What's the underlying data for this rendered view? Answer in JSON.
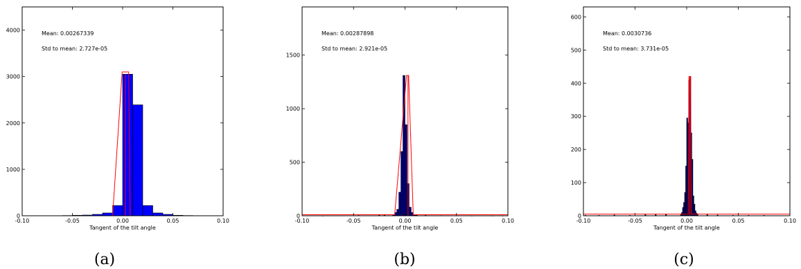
{
  "chart_data": [
    {
      "type": "bar",
      "subcaption": "(a)",
      "xlabel": "Tangent of the tilt angle",
      "ylabel": "",
      "xlim": [
        -0.1,
        0.1
      ],
      "ylim": [
        0,
        4500
      ],
      "xticks": [
        "-0.10",
        "-0.05",
        "0.00",
        "0.05",
        "0.10"
      ],
      "xtick_values": [
        -0.1,
        -0.05,
        0.0,
        0.05,
        0.1
      ],
      "yticks": [
        "0",
        "1000",
        "2000",
        "3000",
        "4000"
      ],
      "ytick_values": [
        0,
        1000,
        2000,
        3000,
        4000
      ],
      "annotations": [
        "Mean: 0.00267339",
        "Std to mean: 2.727e-05"
      ],
      "mean_line": 0.0027,
      "curve": [
        [
          -0.1,
          0
        ],
        [
          -0.01,
          0
        ],
        [
          -0.0005,
          3100
        ],
        [
          0.006,
          3100
        ],
        [
          0.0075,
          0
        ],
        [
          0.1,
          0
        ]
      ],
      "bin_edges": [
        -0.1,
        -0.09,
        -0.08,
        -0.07,
        -0.06,
        -0.05,
        -0.04,
        -0.03,
        -0.02,
        -0.01,
        0.0,
        0.01,
        0.02,
        0.03,
        0.04,
        0.05,
        0.06,
        0.07,
        0.08,
        0.09,
        0.1
      ],
      "values": [
        0,
        0,
        0,
        0,
        5,
        10,
        15,
        30,
        60,
        220,
        3050,
        2390,
        220,
        60,
        30,
        10,
        5,
        0,
        0,
        0
      ],
      "bar_color": "#0000ff"
    },
    {
      "type": "bar",
      "subcaption": "(b)",
      "xlabel": "Tangent of the tilt angle",
      "ylabel": "",
      "xlim": [
        -0.1,
        0.1
      ],
      "ylim": [
        0,
        1950
      ],
      "xticks": [
        "-0.10",
        "-0.05",
        "0.00",
        "0.05",
        "0.10"
      ],
      "xtick_values": [
        -0.1,
        -0.05,
        0.0,
        0.05,
        0.1
      ],
      "yticks": [
        "0",
        "500",
        "1000",
        "1500"
      ],
      "ytick_values": [
        0,
        500,
        1000,
        1500
      ],
      "annotations": [
        "Mean: 0.00287898",
        "Std to mean: 2.921e-05"
      ],
      "mean_line": 0.0029,
      "curve": [
        [
          -0.1,
          10
        ],
        [
          -0.01,
          10
        ],
        [
          0.0015,
          1310
        ],
        [
          0.0035,
          1310
        ],
        [
          0.008,
          10
        ],
        [
          0.1,
          10
        ]
      ],
      "bin_edges": [
        -0.012,
        -0.01,
        -0.008,
        -0.006,
        -0.004,
        -0.002,
        0.0,
        0.002,
        0.004,
        0.006,
        0.008,
        0.01,
        0.012
      ],
      "values": [
        10,
        30,
        60,
        220,
        600,
        1310,
        850,
        300,
        80,
        30,
        10,
        5
      ],
      "scatter_x": [
        -0.095,
        -0.08,
        -0.06,
        -0.045,
        -0.025,
        -0.02,
        0.02,
        0.035,
        0.05,
        0.065,
        0.085,
        0.095
      ],
      "scatter_y": [
        3,
        2,
        3,
        5,
        8,
        10,
        6,
        4,
        3,
        2,
        2,
        2
      ],
      "bar_color": "#00008b"
    },
    {
      "type": "bar",
      "subcaption": "(c)",
      "xlabel": "Tangent of the tilt angle",
      "ylabel": "",
      "xlim": [
        -0.1,
        0.1
      ],
      "ylim": [
        0,
        630
      ],
      "xticks": [
        "-0.10",
        "-0.05",
        "0.00",
        "0.05",
        "0.10"
      ],
      "xtick_values": [
        -0.1,
        -0.05,
        0.0,
        0.05,
        0.1
      ],
      "yticks": [
        "0",
        "100",
        "200",
        "300",
        "400",
        "500",
        "600"
      ],
      "ytick_values": [
        0,
        100,
        200,
        300,
        400,
        500,
        600
      ],
      "annotations": [
        "Mean: 0.0030736",
        "Std to mean: 3.731e-05"
      ],
      "mean_line": 0.003,
      "curve": [
        [
          -0.1,
          5
        ],
        [
          0.0015,
          5
        ],
        [
          0.0022,
          420
        ],
        [
          0.0038,
          420
        ],
        [
          0.0045,
          5
        ],
        [
          0.1,
          5
        ]
      ],
      "bin_edges": [
        -0.006,
        -0.005,
        -0.004,
        -0.003,
        -0.002,
        -0.001,
        0.0,
        0.001,
        0.002,
        0.003,
        0.004,
        0.005,
        0.006,
        0.007,
        0.008,
        0.009,
        0.01,
        0.011
      ],
      "values": [
        5,
        10,
        25,
        40,
        70,
        150,
        295,
        280,
        410,
        420,
        250,
        170,
        60,
        35,
        15,
        8,
        4
      ],
      "scatter_x": [
        -0.098,
        -0.085,
        -0.07,
        -0.055,
        -0.04,
        -0.03,
        -0.02,
        0.02,
        0.03,
        0.045,
        0.06,
        0.075,
        0.09
      ],
      "scatter_y": [
        2,
        2,
        3,
        2,
        4,
        5,
        6,
        4,
        3,
        2,
        2,
        2,
        1
      ],
      "bar_color": "#00008b"
    }
  ]
}
